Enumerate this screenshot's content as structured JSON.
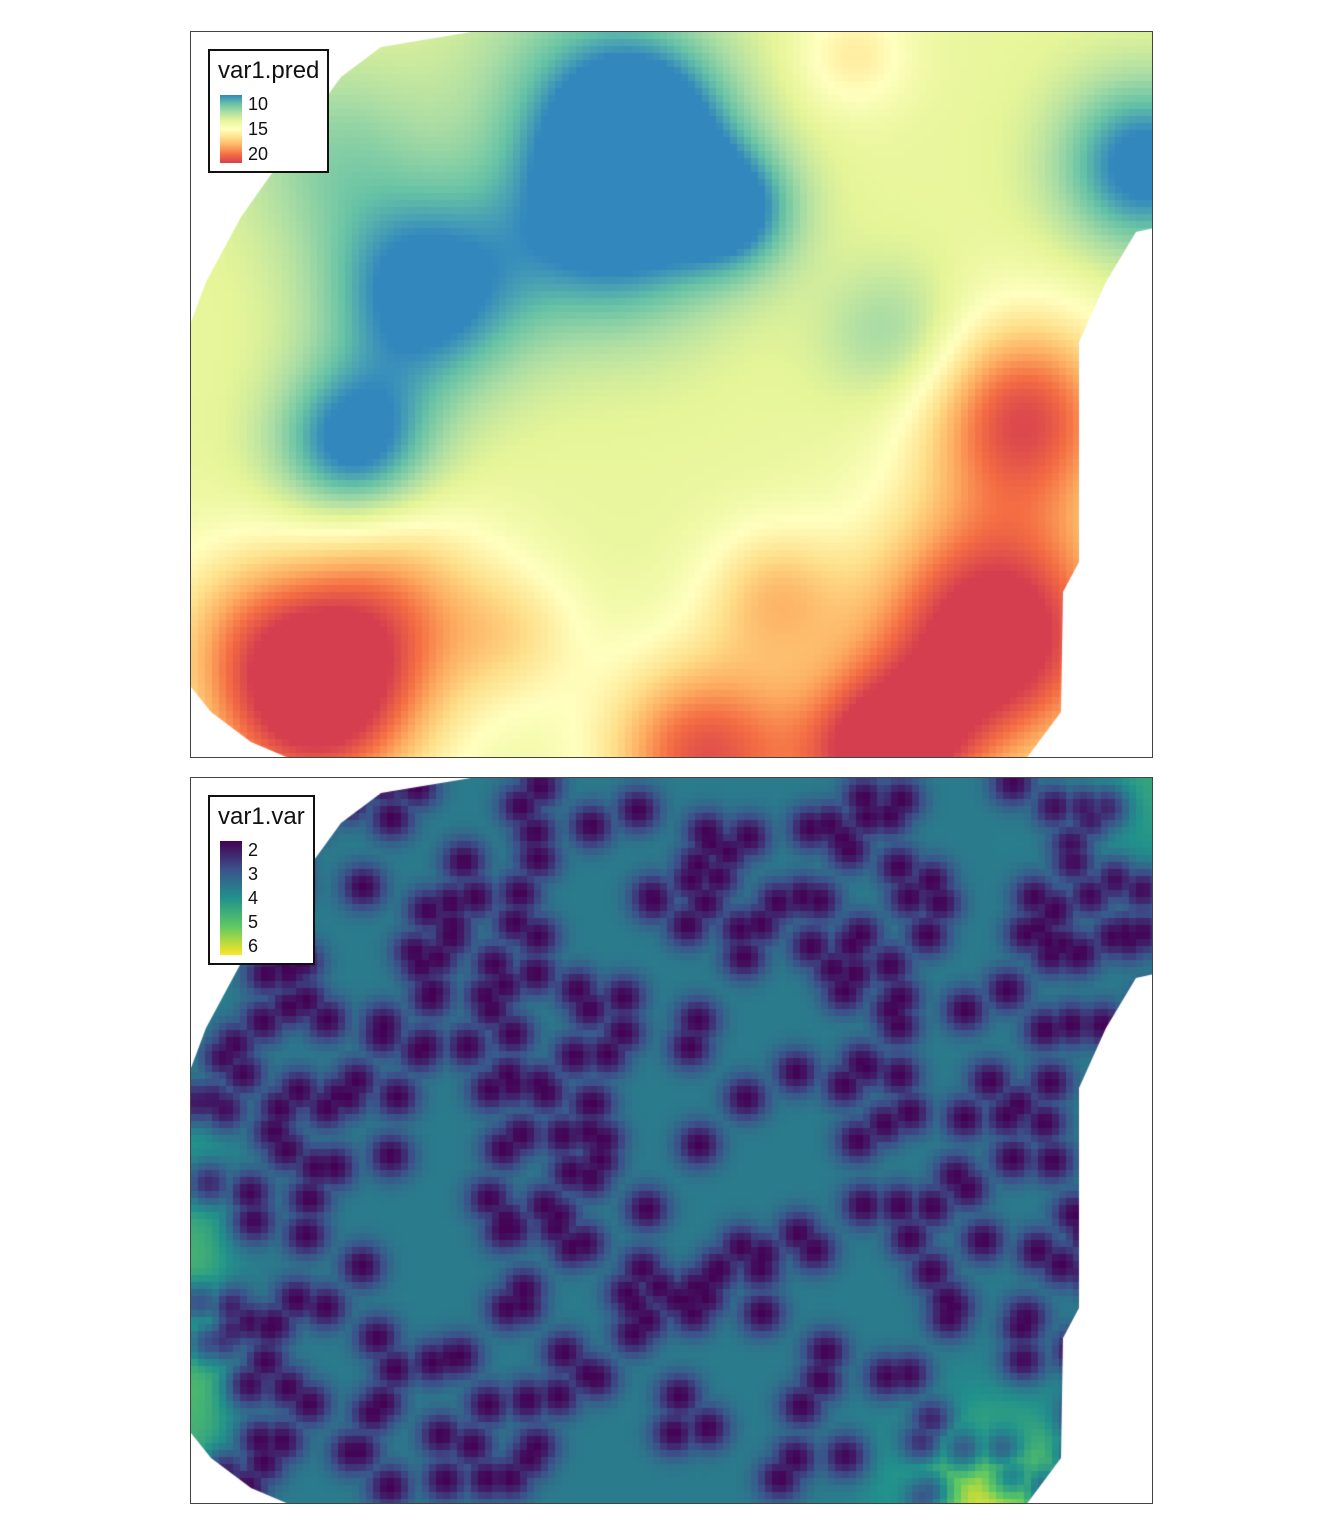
{
  "panels": [
    {
      "layer": "var1.pred",
      "legend": {
        "title": "var1.pred",
        "labels": [
          "10",
          "15",
          "20"
        ],
        "palette": [
          "#3288bd",
          "#66c2a5",
          "#abdda4",
          "#e6f598",
          "#ffffbf",
          "#fee08b",
          "#fdae61",
          "#f46d43",
          "#d53e4f"
        ],
        "range": [
          10,
          20
        ]
      }
    },
    {
      "layer": "var1.var",
      "legend": {
        "title": "var1.var",
        "labels": [
          "2",
          "3",
          "4",
          "5",
          "6"
        ],
        "palette": [
          "#440154",
          "#3b528b",
          "#21918c",
          "#5ec962",
          "#fde725"
        ],
        "range": [
          2,
          6
        ]
      }
    }
  ]
}
